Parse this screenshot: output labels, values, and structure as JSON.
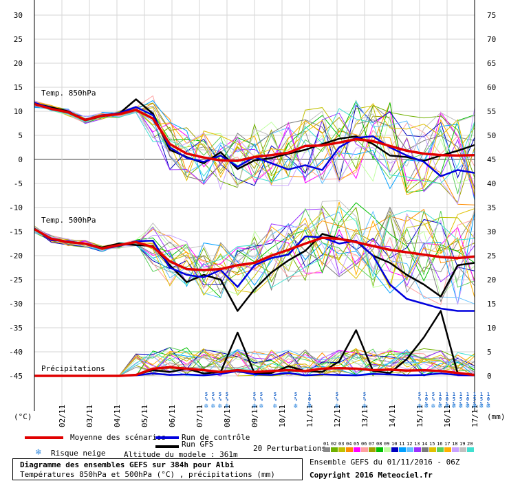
{
  "chart_data": {
    "type": "line",
    "title": "Diagramme des ensembles GEFS sur 384h pour Albi",
    "subtitle": "Températures 850hPa et 500hPa (°C) , précipitations (mm)",
    "panels": [
      {
        "name": "Temp. 850hPa",
        "type": "line",
        "ylim": [
          -5,
          15
        ]
      },
      {
        "name": "Temp. 500hPa",
        "type": "line",
        "ylim": [
          -30,
          -10
        ]
      },
      {
        "name": "Précipitations",
        "type": "line",
        "ylim": [
          0,
          15
        ]
      }
    ],
    "x_tick_labels": [
      "02/11",
      "03/11",
      "04/11",
      "05/11",
      "06/11",
      "07/11",
      "08/11",
      "09/11",
      "10/11",
      "11/11",
      "12/11",
      "13/11",
      "14/11",
      "15/11",
      "16/11",
      "17/11"
    ],
    "y_left_ticks": [
      30,
      25,
      20,
      15,
      10,
      5,
      0,
      -5,
      -10,
      -15,
      -20,
      -25,
      -30,
      -35,
      -40,
      -45
    ],
    "y_right_ticks": [
      75,
      70,
      65,
      60,
      55,
      50,
      45,
      40,
      35,
      30,
      25,
      20,
      15,
      10,
      5,
      0
    ],
    "y_left_unit": "(°C)",
    "y_right_unit": "(mm)",
    "series_t850": [
      {
        "name": "Moyenne des scénarios",
        "color": "#e00000",
        "values": [
          11.5,
          10.5,
          9.8,
          8.2,
          9.1,
          9.4,
          10.3,
          8.5,
          3.2,
          1.2,
          0.4,
          -0.2,
          -0.3,
          0.5,
          0.9,
          1.4,
          2.8,
          2.9,
          3.5,
          4.2,
          3.8,
          2.8,
          1.8,
          1.2,
          0.9,
          0.8,
          0.9
        ]
      },
      {
        "name": "Run de contrôle",
        "color": "#0000dd",
        "values": [
          11.8,
          10.6,
          9.7,
          8.3,
          9.2,
          9.6,
          10.9,
          9.2,
          2.5,
          0.3,
          -0.5,
          0.8,
          -1.5,
          0.5,
          -0.8,
          -2.1,
          -1.2,
          -2.2,
          2.5,
          4.5,
          4.8,
          2.5,
          0.8,
          -0.5,
          -3.5,
          -2.2,
          -2.8
        ]
      },
      {
        "name": "Run GFS",
        "color": "#000000",
        "values": [
          11.7,
          10.8,
          10.0,
          8.1,
          9.0,
          9.5,
          12.5,
          9.5,
          2.0,
          0.5,
          -0.8,
          1.5,
          -2.0,
          -0.2,
          0.3,
          1.2,
          2.0,
          3.2,
          4.3,
          4.8,
          3.2,
          0.8,
          0.5,
          -0.3,
          0.8,
          1.8,
          3.0
        ]
      }
    ],
    "series_t500": [
      {
        "name": "Moyenne des scénarios",
        "color": "#e00000",
        "values": [
          -14.5,
          -16.5,
          -17.2,
          -17.5,
          -18.5,
          -17.8,
          -17.2,
          -18.2,
          -21.2,
          -22.8,
          -23.0,
          -22.8,
          -22.0,
          -21.5,
          -20.0,
          -18.8,
          -17.5,
          -16.3,
          -16.5,
          -17.2,
          -18.0,
          -18.8,
          -19.3,
          -19.8,
          -20.3,
          -20.5,
          -20.2
        ]
      },
      {
        "name": "Run de contrôle",
        "color": "#0000dd",
        "values": [
          -14.4,
          -16.8,
          -17.0,
          -17.6,
          -18.6,
          -18.0,
          -17.0,
          -16.9,
          -22.5,
          -24.0,
          -24.5,
          -23.0,
          -26.5,
          -22.0,
          -20.5,
          -19.8,
          -16.0,
          -16.2,
          -17.5,
          -16.9,
          -20.0,
          -26.0,
          -29.0,
          -30.0,
          -31.0,
          -31.5,
          -31.5
        ]
      },
      {
        "name": "Run GFS",
        "color": "#000000",
        "values": [
          -14.5,
          -16.5,
          -17.2,
          -17.5,
          -18.3,
          -17.5,
          -17.8,
          -18.0,
          -22.0,
          -25.5,
          -24.0,
          -25.0,
          -31.5,
          -27.0,
          -23.5,
          -21.0,
          -19.0,
          -15.5,
          -16.5,
          -17.0,
          -20.0,
          -21.5,
          -24.0,
          -26.0,
          -28.5,
          -22.0,
          -21.5
        ]
      }
    ],
    "series_precip": [
      {
        "name": "Moyenne des scénarios",
        "color": "#e00000",
        "values": [
          0,
          0,
          0,
          0,
          0,
          0,
          0.2,
          1.5,
          1.8,
          1.5,
          1.2,
          0.8,
          1.2,
          0.8,
          1.0,
          1.2,
          1.0,
          1.5,
          1.6,
          1.5,
          1.2,
          1.3,
          1.1,
          1.2,
          1.0,
          0.6,
          0.2
        ]
      },
      {
        "name": "Run de contrôle",
        "color": "#0000dd",
        "values": [
          0,
          0,
          0,
          0,
          0,
          0,
          0.1,
          0.5,
          0.2,
          0.3,
          0.1,
          0.4,
          1.0,
          0.3,
          0.2,
          0.6,
          0.1,
          0.3,
          0.2,
          0.1,
          0.4,
          0.3,
          0.1,
          0.2,
          0.5,
          0.2,
          0.1
        ]
      },
      {
        "name": "Run GFS",
        "color": "#000000",
        "values": [
          0,
          0,
          0,
          0,
          0,
          0,
          0.2,
          1.2,
          0.8,
          1.5,
          0.5,
          0.8,
          9.0,
          0.5,
          0.6,
          2.0,
          1.0,
          0.8,
          3.0,
          9.5,
          1.0,
          0.6,
          3.5,
          8.0,
          13.5,
          0.5,
          0.1
        ]
      }
    ],
    "snow_risk": [
      {
        "label": "5%",
        "day": 6.25
      },
      {
        "label": "5%",
        "day": 6.5
      },
      {
        "label": "5%",
        "day": 6.75
      },
      {
        "label": "5%",
        "day": 7.0
      },
      {
        "label": "5%",
        "day": 8.0
      },
      {
        "label": "5%",
        "day": 8.25
      },
      {
        "label": "5%",
        "day": 8.75
      },
      {
        "label": "5%",
        "day": 9.5
      },
      {
        "label": "10%",
        "day": 10.0
      },
      {
        "label": "5%",
        "day": 11.0
      },
      {
        "label": "5%",
        "day": 12.0
      },
      {
        "label": "5%",
        "day": 14.0
      },
      {
        "label": "10%",
        "day": 14.25
      },
      {
        "label": "5%",
        "day": 14.5
      },
      {
        "label": "10%",
        "day": 14.75
      },
      {
        "label": "10%",
        "day": 15.0
      },
      {
        "label": "15%",
        "day": 15.25
      },
      {
        "label": "15%",
        "day": 15.5
      },
      {
        "label": "10%",
        "day": 15.75
      },
      {
        "label": "15%",
        "day": 16.0
      },
      {
        "label": "15%",
        "day": 16.25
      },
      {
        "label": "10%",
        "day": 16.5
      }
    ],
    "perturbation_colors": [
      "#8a8a8a",
      "#6fb000",
      "#c0c000",
      "#ff8c00",
      "#ff00ff",
      "#ffa0a0",
      "#a0a000",
      "#00c000",
      "#c0ffa0",
      "#0000c0",
      "#00a0ff",
      "#60c0ff",
      "#9b30ff",
      "#7a7a7a",
      "#e0c000",
      "#5ad05a",
      "#ffb000",
      "#c8a0ff",
      "#c0c0c0",
      "#40e0d0"
    ]
  },
  "labels": {
    "t850": "Temp. 850hPa",
    "t500": "Temp. 500hPa",
    "precip": "Précipitations"
  },
  "legend": {
    "mean": "Moyenne des scénarios",
    "control": "Run de contrôle",
    "gfs": "Run GFS",
    "snow": "Risque neige",
    "altitude": "Altitude du modele : 361m",
    "perturbations": "20 Perturbations",
    "pert_numbers": [
      "01",
      "02",
      "03",
      "04",
      "05",
      "06",
      "07",
      "08",
      "09",
      "10",
      "11",
      "12",
      "13",
      "14",
      "15",
      "16",
      "17",
      "18",
      "19",
      "20"
    ]
  },
  "footer": {
    "title": "Diagramme des ensembles GEFS sur 384h pour Albi",
    "subtitle": "Températures 850hPa et 500hPa (°C) , précipitations (mm)",
    "ensemble": "Ensemble GEFS du 01/11/2016 - 06Z",
    "copyright": "Copyright 2016 Meteociel.fr"
  }
}
